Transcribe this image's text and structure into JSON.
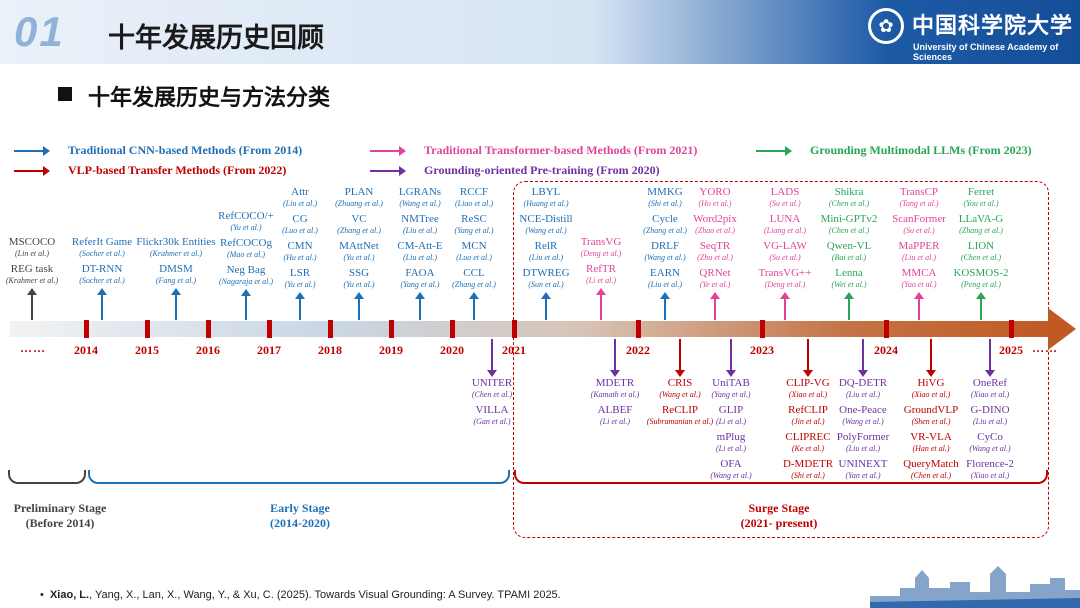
{
  "header": {
    "num": "01",
    "title": "十年发展历史回顾",
    "uni_cn": "中国科学院大学",
    "uni_en": "University of Chinese Academy of Sciences"
  },
  "subtitle": "十年发展历史与方法分类",
  "colors": {
    "blue": "#1f6fb5",
    "red": "#c00000",
    "pink": "#e0449a",
    "purple": "#7030a0",
    "green": "#2aa556",
    "gray": "#444444",
    "accent": "#1d5aa6"
  },
  "legend": [
    {
      "label": "Traditional CNN-based Methods (From 2014)",
      "color": "#1f6fb5"
    },
    {
      "label": "Traditional Transformer-based Methods (From 2021)",
      "color": "#e0449a"
    },
    {
      "label": "Grounding Multimodal LLMs (From 2023)",
      "color": "#2aa556"
    },
    {
      "label": "VLP-based Transfer Methods (From 2022)",
      "color": "#c00000"
    },
    {
      "label": "Grounding-oriented Pre-training (From 2020)",
      "color": "#7030a0"
    }
  ],
  "years": [
    "2014",
    "2015",
    "2016",
    "2017",
    "2018",
    "2019",
    "2020",
    "2021",
    "2022",
    "2023",
    "2024",
    "2025"
  ],
  "dots": "……",
  "above": [
    {
      "color": "#444444",
      "items": [
        [
          "MSCOCO",
          "(Lin et al.)"
        ],
        [
          "REG task",
          "(Krahmer et al.)"
        ]
      ]
    },
    {
      "color": "#1f6fb5",
      "items": [
        [
          "ReferIt Game",
          "(Socher et al.)"
        ],
        [
          "DT-RNN",
          "(Socher et al.)"
        ]
      ]
    },
    {
      "color": "#1f6fb5",
      "items": [
        [
          "Flickr30k Entities",
          "(Krahmer et al.)"
        ],
        [
          "DMSM",
          "(Fang et al.)"
        ]
      ]
    },
    {
      "color": "#1f6fb5",
      "items": [
        [
          "RefCOCO/+",
          "(Yu et al.)"
        ],
        [
          "RefCOCOg",
          "(Mao et al.)"
        ],
        [
          "Neg Bag",
          "(Nagaraja et al.)"
        ]
      ]
    },
    {
      "color": "#1f6fb5",
      "items": [
        [
          "Attr",
          "(Liu et al.)"
        ],
        [
          "CG",
          "(Luo et al.)"
        ],
        [
          "CMN",
          "(Hu et al.)"
        ],
        [
          "LSR",
          "(Yu et al.)"
        ]
      ]
    },
    {
      "color": "#1f6fb5",
      "items": [
        [
          "PLAN",
          "(Zhuang et al.)"
        ],
        [
          "VC",
          "(Zhang et al.)"
        ],
        [
          "MAttNet",
          "(Yu et al.)"
        ],
        [
          "SSG",
          "(Yu et al.)"
        ]
      ]
    },
    {
      "color": "#1f6fb5",
      "items": [
        [
          "LGRANs",
          "(Wang et al.)"
        ],
        [
          "NMTree",
          "(Liu et al.)"
        ],
        [
          "CM-Att-E",
          "(Liu et al.)"
        ],
        [
          "FAOA",
          "(Yang et al.)"
        ]
      ]
    },
    {
      "color": "#1f6fb5",
      "items": [
        [
          "RCCF",
          "(Liao et al.)"
        ],
        [
          "ReSC",
          "(Yang et al.)"
        ],
        [
          "MCN",
          "(Luo et al.)"
        ],
        [
          "CCL",
          "(Zhang et al.)"
        ]
      ]
    },
    {
      "color": "#1f6fb5",
      "items": [
        [
          "LBYL",
          "(Huang et al.)"
        ],
        [
          "NCE-Distill",
          "(Wang et al.)"
        ],
        [
          "RelR",
          "(Liu et al.)"
        ],
        [
          "DTWREG",
          "(Sun et al.)"
        ]
      ]
    },
    {
      "color": "#e0449a",
      "items": [
        [
          "TransVG",
          "(Deng et al.)"
        ],
        [
          "RefTR",
          "(Li et al.)"
        ]
      ]
    },
    {
      "color": "#1f6fb5",
      "items": [
        [
          "MMKG",
          "(Shi et al.)"
        ],
        [
          "Cycle",
          "(Zhang et al.)"
        ],
        [
          "DRLF",
          "(Wang et al.)"
        ],
        [
          "EARN",
          "(Liu et al.)"
        ]
      ]
    },
    {
      "color": "#e0449a",
      "items": [
        [
          "YORO",
          "(Ho et al.)"
        ],
        [
          "Word2pix",
          "(Zhao et al.)"
        ],
        [
          "SeqTR",
          "(Zhu et al.)"
        ],
        [
          "QRNet",
          "(Ye et al.)"
        ]
      ]
    },
    {
      "color": "#e0449a",
      "items": [
        [
          "LADS",
          "(Su et al.)"
        ],
        [
          "LUNA",
          "(Liang et al.)"
        ],
        [
          "VG-LAW",
          "(Su et al.)"
        ],
        [
          "TransVG++",
          "(Deng et al.)"
        ]
      ]
    },
    {
      "color": "#2aa556",
      "items": [
        [
          "Shikra",
          "(Chen et al.)"
        ],
        [
          "Mini-GPTv2",
          "(Chen et al.)"
        ],
        [
          "Qwen-VL",
          "(Bai et al.)"
        ],
        [
          "Lenna",
          "(Wei et al.)"
        ]
      ]
    },
    {
      "color": "#e0449a",
      "items": [
        [
          "TransCP",
          "(Tang et al.)"
        ],
        [
          "ScanFormer",
          "(Su et al.)"
        ],
        [
          "MaPPER",
          "(Liu et al.)"
        ],
        [
          "MMCA",
          "(Yao et al.)"
        ]
      ]
    },
    {
      "color": "#2aa556",
      "items": [
        [
          "Ferret",
          "(You et al.)"
        ],
        [
          "LLaVA-G",
          "(Zhang et al.)"
        ],
        [
          "LION",
          "(Chen et al.)"
        ],
        [
          "KOSMOS-2",
          "(Peng et al.)"
        ]
      ]
    }
  ],
  "below": [
    {
      "color": "#7030a0",
      "items": [
        [
          "UNITER",
          "(Chen et al.)"
        ],
        [
          "VILLA",
          "(Gan et al.)"
        ]
      ]
    },
    {
      "color": "#7030a0",
      "items": [
        [
          "MDETR",
          "(Kamath et al.)"
        ],
        [
          "ALBEF",
          "(Li et al.)"
        ]
      ]
    },
    {
      "color": "#c00000",
      "items": [
        [
          "CRIS",
          "(Wang et al.)"
        ],
        [
          "ReCLIP",
          "(Subramanian et al.)"
        ]
      ]
    },
    {
      "color": "#7030a0",
      "items": [
        [
          "UniTAB",
          "(Yang et al.)"
        ],
        [
          "GLIP",
          "(Li et al.)"
        ],
        [
          "mPlug",
          "(Li et al.)"
        ],
        [
          "OFA",
          "(Wang et al.)"
        ]
      ]
    },
    {
      "color": "#c00000",
      "items": [
        [
          "CLIP-VG",
          "(Xiao et al.)"
        ],
        [
          "RefCLIP",
          "(Jin et al.)"
        ],
        [
          "CLIPREC",
          "(Ke et al.)"
        ],
        [
          "D-MDETR",
          "(Shi et al.)"
        ]
      ]
    },
    {
      "color": "#7030a0",
      "items": [
        [
          "DQ-DETR",
          "(Liu et al.)"
        ],
        [
          "One-Peace",
          "(Wang et al.)"
        ],
        [
          "PolyFormer",
          "(Liu et al.)"
        ],
        [
          "UNINEXT",
          "(Yan et al.)"
        ]
      ]
    },
    {
      "color": "#c00000",
      "items": [
        [
          "HiVG",
          "(Xiao et al.)"
        ],
        [
          "GroundVLP",
          "(Shen et al.)"
        ],
        [
          "VR-VLA",
          "(Han et al.)"
        ],
        [
          "QueryMatch",
          "(Chen et al.)"
        ]
      ]
    },
    {
      "color": "#7030a0",
      "items": [
        [
          "OneRef",
          "(Xiao et al.)"
        ],
        [
          "G-DINO",
          "(Liu et al.)"
        ],
        [
          "CyCo",
          "(Wang et al.)"
        ],
        [
          "Florence-2",
          "(Xiao et al.)"
        ]
      ]
    }
  ],
  "stages": [
    {
      "name": "Preliminary Stage",
      "range": "(Before 2014)",
      "color": "#444444"
    },
    {
      "name": "Early Stage",
      "range": "(2014-2020)",
      "color": "#1f6fb5"
    },
    {
      "name": "Surge Stage",
      "range": "(2021- present)",
      "color": "#c00000"
    }
  ],
  "citation": {
    "author": "Xiao, L.",
    "rest": ", Yang, X., Lan, X., Wang, Y., & Xu, C. (2025). Towards Visual Grounding: A Survey. TPAMI 2025."
  }
}
